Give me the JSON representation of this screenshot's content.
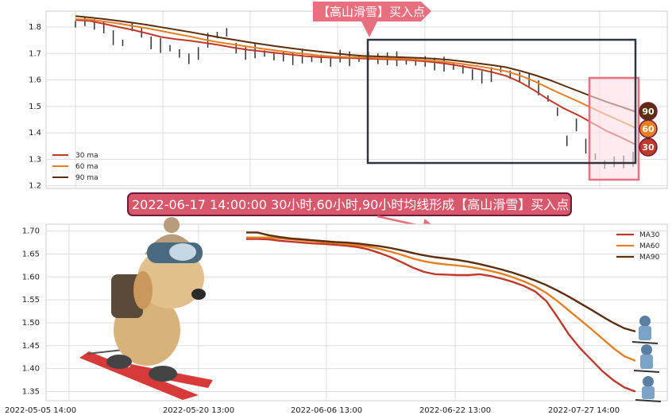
{
  "chart_data": [
    {
      "type": "line",
      "panel": "top",
      "title": "",
      "xlabel": "",
      "ylabel": "",
      "ylim": [
        1.19,
        1.86
      ],
      "yticks": [
        "1.2",
        "1.3",
        "1.4",
        "1.5",
        "1.6",
        "1.7",
        "1.8"
      ],
      "grid": true,
      "legend_placement": "bottom-left",
      "callout_label": "【高山滑雪】买入点",
      "series": [
        {
          "name": "30 ma",
          "color": "#c0392b",
          "values": [
            1.826,
            1.823,
            1.812,
            1.8,
            1.789,
            1.776,
            1.762,
            1.754,
            1.748,
            1.74,
            1.732,
            1.722,
            1.714,
            1.708,
            1.702,
            1.696,
            1.69,
            1.686,
            1.684,
            1.683,
            1.681,
            1.679,
            1.678,
            1.676,
            1.672,
            1.667,
            1.66,
            1.651,
            1.642,
            1.63,
            1.615,
            1.591,
            1.559,
            1.524,
            1.493,
            1.467,
            1.437,
            1.407,
            1.383,
            1.356
          ]
        },
        {
          "name": "60 ma",
          "color": "#e67e22",
          "values": [
            1.83,
            1.828,
            1.821,
            1.813,
            1.804,
            1.795,
            1.785,
            1.774,
            1.764,
            1.752,
            1.742,
            1.734,
            1.726,
            1.718,
            1.711,
            1.704,
            1.698,
            1.692,
            1.688,
            1.686,
            1.685,
            1.683,
            1.681,
            1.679,
            1.676,
            1.672,
            1.667,
            1.66,
            1.652,
            1.643,
            1.633,
            1.616,
            1.594,
            1.568,
            1.543,
            1.519,
            1.493,
            1.468,
            1.444,
            1.419
          ]
        },
        {
          "name": "90 ma",
          "color": "#5c2e0e",
          "values": [
            1.841,
            1.836,
            1.83,
            1.823,
            1.816,
            1.808,
            1.799,
            1.79,
            1.781,
            1.771,
            1.761,
            1.752,
            1.743,
            1.735,
            1.727,
            1.72,
            1.713,
            1.707,
            1.701,
            1.695,
            1.691,
            1.689,
            1.687,
            1.685,
            1.683,
            1.68,
            1.676,
            1.67,
            1.663,
            1.656,
            1.648,
            1.634,
            1.618,
            1.6,
            1.579,
            1.558,
            1.537,
            1.517,
            1.499,
            1.48
          ]
        }
      ],
      "candles": [
        1.81,
        1.82,
        1.81,
        1.8,
        1.76,
        1.74,
        1.8,
        1.78,
        1.74,
        1.73,
        1.72,
        1.7,
        1.68,
        1.7,
        1.75,
        1.77,
        1.78,
        1.72,
        1.7,
        1.71,
        1.7,
        1.69,
        1.69,
        1.68,
        1.69,
        1.68,
        1.68,
        1.67,
        1.69,
        1.68,
        1.68,
        1.69,
        1.68,
        1.68,
        1.68,
        1.67,
        1.67,
        1.67,
        1.66,
        1.66,
        1.65,
        1.64,
        1.62,
        1.61,
        1.62,
        1.64,
        1.62,
        1.61,
        1.6,
        1.57,
        1.53,
        1.48,
        1.37,
        1.43,
        1.35,
        1.31,
        1.28,
        1.29,
        1.29,
        1.3
      ],
      "badges": [
        "90",
        "60",
        "30"
      ]
    },
    {
      "type": "line",
      "panel": "bottom",
      "title": "2022-06-17 14:00:00 30小时,60小时,90小时均线形成【高山滑雪】买入点",
      "xlabel": "",
      "ylabel": "",
      "ylim": [
        1.33,
        1.715
      ],
      "yticks": [
        "1.35",
        "1.40",
        "1.45",
        "1.50",
        "1.55",
        "1.60",
        "1.65",
        "1.70"
      ],
      "xticks": [
        "2022-05-05 14:00",
        "2022-05-20 13:00",
        "2022-06-06 13:00",
        "2022-06-22 13:00",
        "2022-07-27 14:00"
      ],
      "grid": true,
      "legend_placement": "top-right",
      "series": [
        {
          "name": "MA30",
          "color": "#c0392b",
          "values": [
            1.683,
            1.683,
            1.682,
            1.679,
            1.677,
            1.675,
            1.673,
            1.672,
            1.67,
            1.668,
            1.665,
            1.66,
            1.652,
            1.643,
            1.632,
            1.62,
            1.611,
            1.606,
            1.605,
            1.604,
            1.604,
            1.606,
            1.602,
            1.596,
            1.589,
            1.58,
            1.568,
            1.547,
            1.512,
            1.475,
            1.445,
            1.42,
            1.395,
            1.375,
            1.359,
            1.35
          ]
        },
        {
          "name": "MA60",
          "color": "#e67e22",
          "values": [
            1.686,
            1.686,
            1.686,
            1.684,
            1.682,
            1.68,
            1.678,
            1.676,
            1.674,
            1.672,
            1.669,
            1.666,
            1.661,
            1.655,
            1.648,
            1.64,
            1.634,
            1.63,
            1.627,
            1.625,
            1.622,
            1.618,
            1.613,
            1.607,
            1.599,
            1.59,
            1.579,
            1.565,
            1.547,
            1.527,
            1.507,
            1.487,
            1.466,
            1.445,
            1.427,
            1.417
          ]
        },
        {
          "name": "MA90",
          "color": "#5c2e0e",
          "values": [
            1.697,
            1.697,
            1.691,
            1.687,
            1.684,
            1.682,
            1.68,
            1.678,
            1.676,
            1.675,
            1.673,
            1.67,
            1.667,
            1.663,
            1.658,
            1.652,
            1.647,
            1.643,
            1.64,
            1.637,
            1.633,
            1.628,
            1.622,
            1.616,
            1.609,
            1.601,
            1.592,
            1.582,
            1.57,
            1.557,
            1.543,
            1.529,
            1.514,
            1.5,
            1.488,
            1.481
          ]
        }
      ]
    }
  ],
  "colors": {
    "callout_fill": "#e8707e",
    "title_fill": "#d9576b",
    "title_border": "#6b1a3a",
    "highlight_fill": "#fbdde4",
    "highlight_stroke": "#e8707e",
    "box_stroke": "#2f3542",
    "candle": "#333333"
  },
  "icons": {
    "top_left": "skiing-dog-illustration",
    "bottom_right": "skier-figures-icon"
  }
}
